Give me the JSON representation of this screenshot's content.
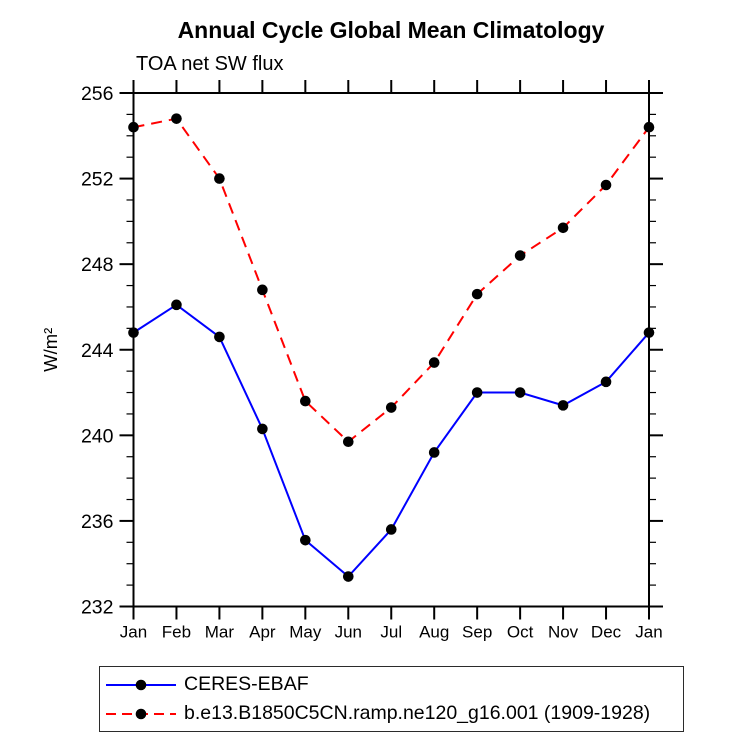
{
  "title": "Annual Cycle Global Mean Climatology",
  "subtitle": "TOA net SW flux",
  "colors": {
    "background": "#ffffff",
    "axis": "#000000",
    "series1": "#0000ff",
    "series2": "#ff0000",
    "marker": "#000000"
  },
  "chart_data": {
    "type": "line",
    "title": "Annual Cycle Global Mean Climatology",
    "subtitle": "TOA net SW flux",
    "ylabel": "W/m²",
    "xlabel": "",
    "categories": [
      "Jan",
      "Feb",
      "Mar",
      "Apr",
      "May",
      "Jun",
      "Jul",
      "Aug",
      "Sep",
      "Oct",
      "Nov",
      "Dec",
      "Jan"
    ],
    "series": [
      {
        "name": "CERES-EBAF",
        "color": "#0000ff",
        "line_style": "solid",
        "dash": [],
        "marker": "filled-circle",
        "marker_color": "#000000",
        "values": [
          244.8,
          246.1,
          244.6,
          240.3,
          235.1,
          233.4,
          235.6,
          239.2,
          242.0,
          242.0,
          241.4,
          242.5,
          244.8
        ]
      },
      {
        "name": "b.e13.B1850C5CN.ramp.ne120_g16.001 (1909-1928)",
        "color": "#ff0000",
        "line_style": "dashed",
        "dash": [
          11,
          7
        ],
        "marker": "filled-circle",
        "marker_color": "#000000",
        "values": [
          254.4,
          254.8,
          252.0,
          246.8,
          241.6,
          239.7,
          241.3,
          243.4,
          246.6,
          248.4,
          249.7,
          251.7,
          254.4
        ]
      }
    ],
    "ylim": [
      232,
      256
    ],
    "yticks": [
      232,
      236,
      240,
      244,
      248,
      252,
      256
    ],
    "minor_tick_interval": 1,
    "tick_direction": "out",
    "grid": false,
    "axis_color": "#000000",
    "legend_position": "bottom-left"
  }
}
